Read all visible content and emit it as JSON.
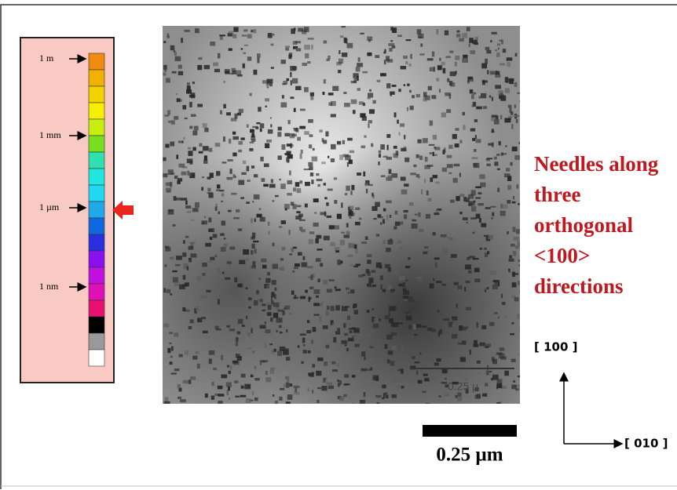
{
  "scale_panel": {
    "labels": [
      "1 m",
      "1 mm",
      "1 µm",
      "1 nm"
    ]
  },
  "micrograph": {
    "inner_scale_label": "0.25 µ"
  },
  "scale_bar": {
    "label": "0.25 µm"
  },
  "annotation": {
    "lines": [
      "Needles along",
      "three",
      "orthogonal",
      "<100>",
      "directions"
    ]
  },
  "axes": {
    "vertical": "[ 100 ]",
    "horizontal": "[ 010 ]"
  }
}
